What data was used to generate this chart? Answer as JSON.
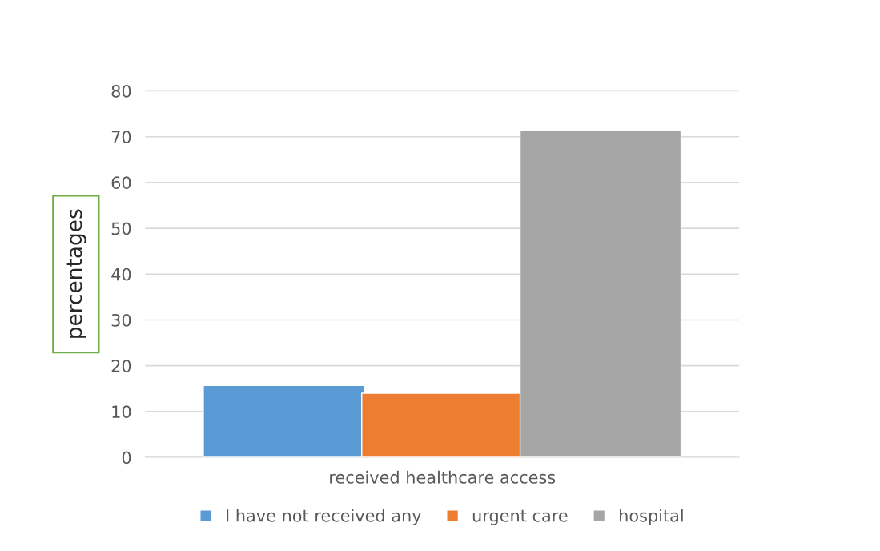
{
  "chart_data": {
    "type": "bar",
    "ylabel": "percentages",
    "categories": [
      "received healthcare access"
    ],
    "series": [
      {
        "name": "I have not received any",
        "color": "#5b9bd5",
        "values": [
          15.7
        ]
      },
      {
        "name": "urgent care",
        "color": "#ed7d31",
        "values": [
          14.0
        ]
      },
      {
        "name": "hospital",
        "color": "#a5a5a5",
        "values": [
          71.3
        ]
      }
    ],
    "ylim": [
      0,
      80
    ],
    "yticks": [
      0,
      10,
      20,
      30,
      40,
      50,
      60,
      70,
      80
    ],
    "grid": "y",
    "legend": "bottom"
  }
}
